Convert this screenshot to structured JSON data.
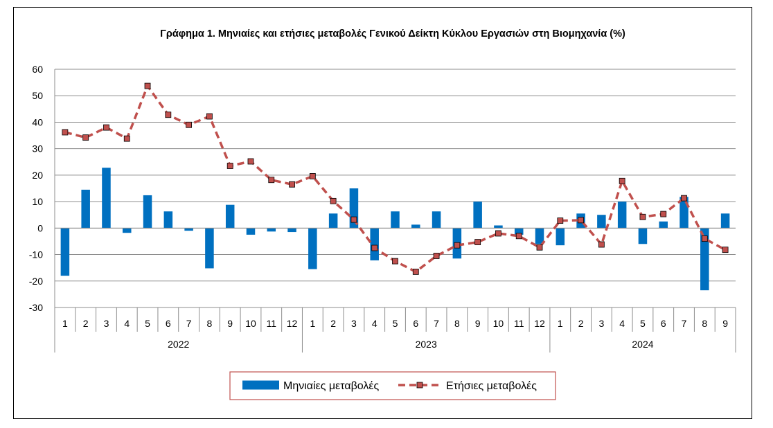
{
  "chart_data": {
    "type": "bar",
    "title": "Γράφημα 1.  Μηνιαίες και ετήσιες μεταβολές  Γενικού Δείκτη Κύκλου Εργασιών στη Βιομηχανία  (%)",
    "xlabel": "",
    "ylabel": "",
    "ylim": [
      -30,
      60
    ],
    "yticks": [
      60,
      50,
      40,
      30,
      20,
      10,
      0,
      -10,
      -20,
      -30
    ],
    "grid": true,
    "legend_position": "bottom",
    "categories": [
      "1",
      "2",
      "3",
      "4",
      "5",
      "6",
      "7",
      "8",
      "9",
      "10",
      "11",
      "12",
      "1",
      "2",
      "3",
      "4",
      "5",
      "6",
      "7",
      "8",
      "9",
      "10",
      "11",
      "12",
      "1",
      "2",
      "3",
      "4",
      "5",
      "6",
      "7",
      "8",
      "9"
    ],
    "groups": [
      {
        "label": "2022",
        "count": 12
      },
      {
        "label": "2023",
        "count": 12
      },
      {
        "label": "2024",
        "count": 9
      }
    ],
    "series": [
      {
        "name": "Μηνιαίες μεταβολές",
        "type": "bar",
        "color": "#0070C0",
        "values": [
          -18,
          14.5,
          22.8,
          -1.8,
          12.4,
          6.3,
          -1,
          -15.2,
          8.8,
          -2.5,
          -1.3,
          -1.5,
          -15.5,
          5.5,
          15,
          -12.2,
          6.3,
          1.3,
          6.3,
          -11.5,
          10,
          1,
          -2.5,
          -6,
          -6.5,
          5.5,
          5,
          10,
          -6,
          2.5,
          11.8,
          -23.5,
          5.5
        ]
      },
      {
        "name": "Ετήσιες μεταβολές",
        "type": "line",
        "color": "#C0504D",
        "values": [
          36.2,
          34.2,
          38,
          33.8,
          53.7,
          42.8,
          39,
          42.2,
          23.5,
          25.2,
          18.2,
          16.5,
          19.6,
          10.2,
          3.2,
          -7.5,
          -12.5,
          -16.5,
          -10.5,
          -6.5,
          -5.3,
          -2,
          -3,
          -7.3,
          2.8,
          3,
          -6.2,
          17.8,
          4.2,
          5.3,
          11.3,
          -4,
          -8.2
        ]
      }
    ]
  }
}
